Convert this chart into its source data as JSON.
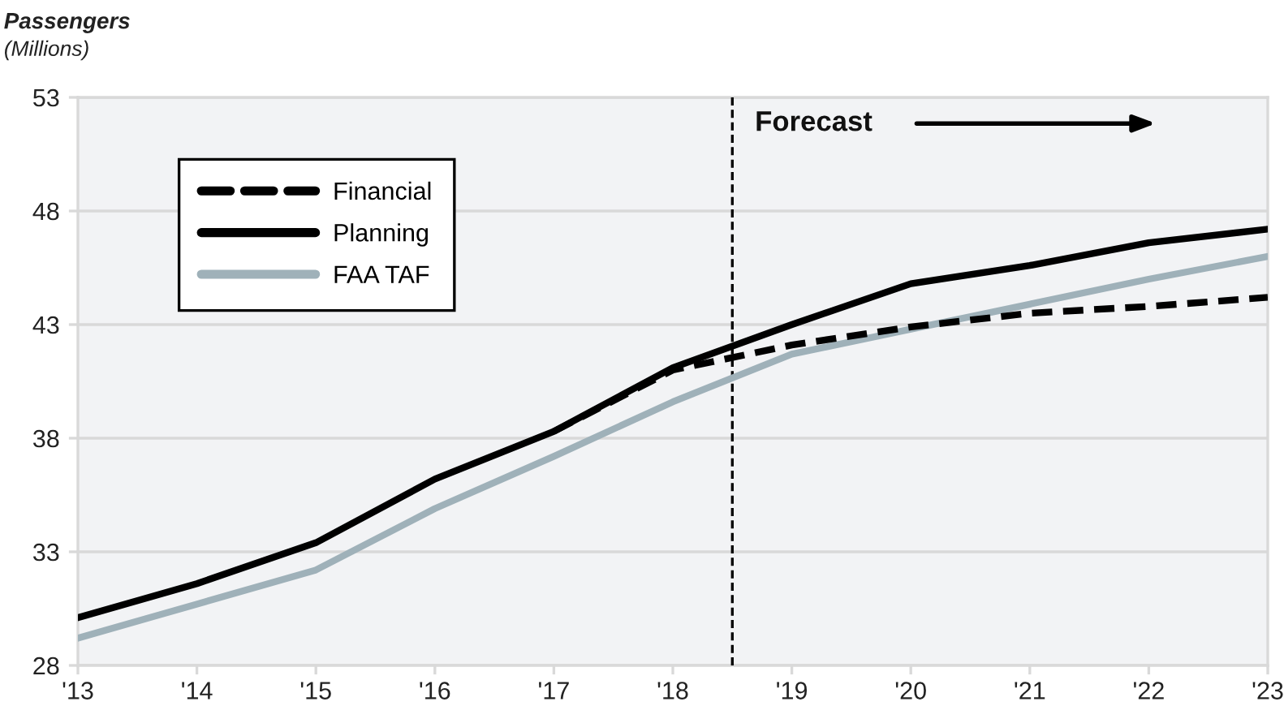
{
  "chart_data": {
    "type": "line",
    "ylabel": "Passengers\n(Millions)",
    "x": [
      2013,
      2014,
      2015,
      2016,
      2017,
      2018,
      2019,
      2020,
      2021,
      2022,
      2023
    ],
    "xlim": [
      2013,
      2023
    ],
    "xticks": [
      {
        "value": 2013,
        "label": "'13"
      },
      {
        "value": 2014,
        "label": "'14"
      },
      {
        "value": 2015,
        "label": "'15"
      },
      {
        "value": 2016,
        "label": "'16"
      },
      {
        "value": 2017,
        "label": "'17"
      },
      {
        "value": 2018,
        "label": "'18"
      },
      {
        "value": 2019,
        "label": "'19"
      },
      {
        "value": 2020,
        "label": "'20"
      },
      {
        "value": 2021,
        "label": "'21"
      },
      {
        "value": 2022,
        "label": "'22"
      },
      {
        "value": 2023,
        "label": "'23"
      }
    ],
    "ylim": [
      28,
      53
    ],
    "yticks": [
      28,
      33,
      38,
      43,
      48,
      53
    ],
    "grid": "y",
    "legend": "top left",
    "line_style": "solid",
    "series": [
      {
        "name": "Financial",
        "color": "#000000",
        "line_style": "dashed",
        "values": [
          null,
          null,
          null,
          null,
          38.3,
          41.0,
          42.1,
          42.9,
          43.5,
          43.8,
          44.2
        ]
      },
      {
        "name": "Planning",
        "color": "#000000",
        "values": [
          30.1,
          31.6,
          33.4,
          36.2,
          38.3,
          41.1,
          43.0,
          44.8,
          45.6,
          46.6,
          47.2
        ]
      },
      {
        "name": "FAA TAF",
        "color": "#9fb1b9",
        "values": [
          29.2,
          30.7,
          32.2,
          34.9,
          37.2,
          39.6,
          41.7,
          42.8,
          43.9,
          45.0,
          46.0
        ]
      }
    ],
    "ref_lines": [
      {
        "axis": "x",
        "value": 2018.5,
        "color": "#000000",
        "line_style": "dashed"
      }
    ],
    "annotations": [
      "Forecast"
    ]
  }
}
